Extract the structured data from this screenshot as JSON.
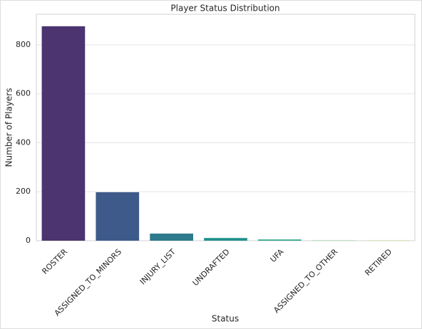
{
  "chart_data": {
    "type": "bar",
    "title": "Player Status Distribution",
    "x_label": "Status",
    "y_label": "Number of Players",
    "categories": [
      "ROSTER",
      "ASSIGNED_TO_MINORS",
      "INJURY_LIST",
      "UNDRAFTED",
      "UFA",
      "ASSIGNED_TO_OTHER",
      "RETIRED"
    ],
    "values": [
      876,
      198,
      29,
      11,
      5,
      1,
      1
    ],
    "colors": [
      "#4b3470",
      "#3e5a8a",
      "#2c7a8c",
      "#21908d",
      "#2ea88a",
      "#5ec06a",
      "#a8d55a"
    ],
    "ylim": [
      0,
      925
    ],
    "yticks": [
      0,
      200,
      400,
      600,
      800
    ],
    "grid": true
  }
}
